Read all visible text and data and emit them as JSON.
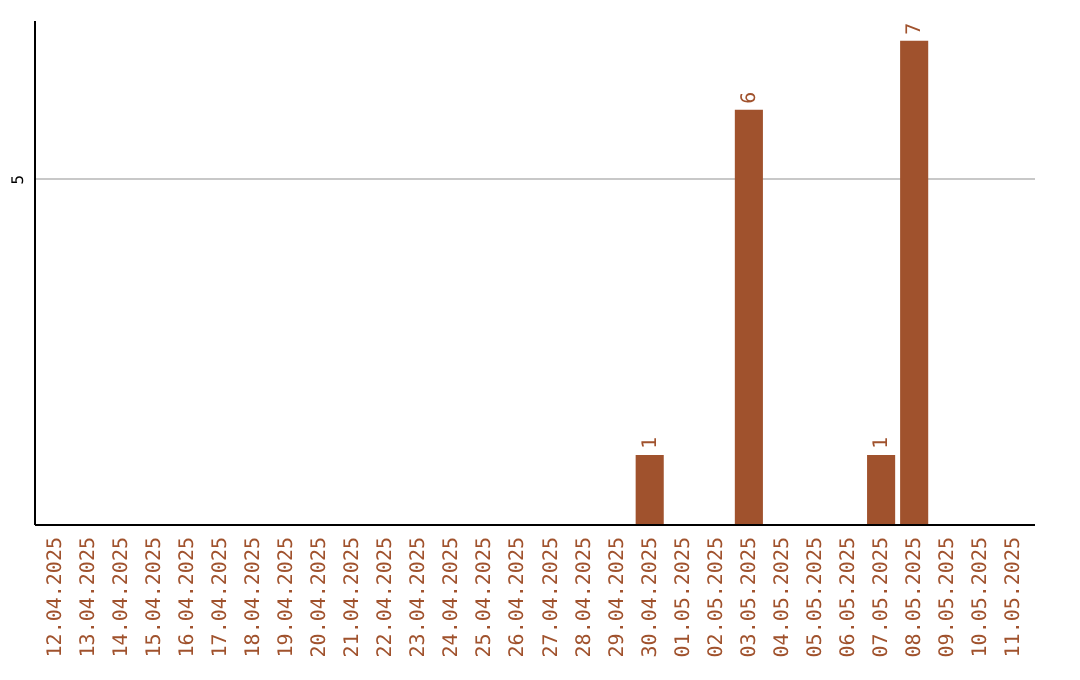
{
  "chart_data": {
    "type": "bar",
    "categories": [
      "12.04.2025",
      "13.04.2025",
      "14.04.2025",
      "15.04.2025",
      "16.04.2025",
      "17.04.2025",
      "18.04.2025",
      "19.04.2025",
      "20.04.2025",
      "21.04.2025",
      "22.04.2025",
      "23.04.2025",
      "24.04.2025",
      "25.04.2025",
      "26.04.2025",
      "27.04.2025",
      "28.04.2025",
      "29.04.2025",
      "30.04.2025",
      "01.05.2025",
      "02.05.2025",
      "03.05.2025",
      "04.05.2025",
      "05.05.2025",
      "06.05.2025",
      "07.05.2025",
      "08.05.2025",
      "09.05.2025",
      "10.05.2025",
      "11.05.2025"
    ],
    "values": [
      null,
      null,
      null,
      null,
      null,
      null,
      null,
      null,
      null,
      null,
      null,
      null,
      null,
      null,
      null,
      null,
      null,
      null,
      1,
      null,
      null,
      6,
      null,
      null,
      null,
      1,
      7,
      null,
      null,
      null
    ],
    "value_labels": [
      null,
      null,
      null,
      null,
      null,
      null,
      null,
      null,
      null,
      null,
      null,
      null,
      null,
      null,
      null,
      null,
      null,
      null,
      "1",
      null,
      null,
      "6",
      null,
      null,
      null,
      "1",
      "7",
      null,
      null,
      null
    ],
    "color": "#a0522d",
    "ylim": [
      0,
      7.3
    ],
    "yticks": [
      5
    ],
    "grid": "y"
  }
}
